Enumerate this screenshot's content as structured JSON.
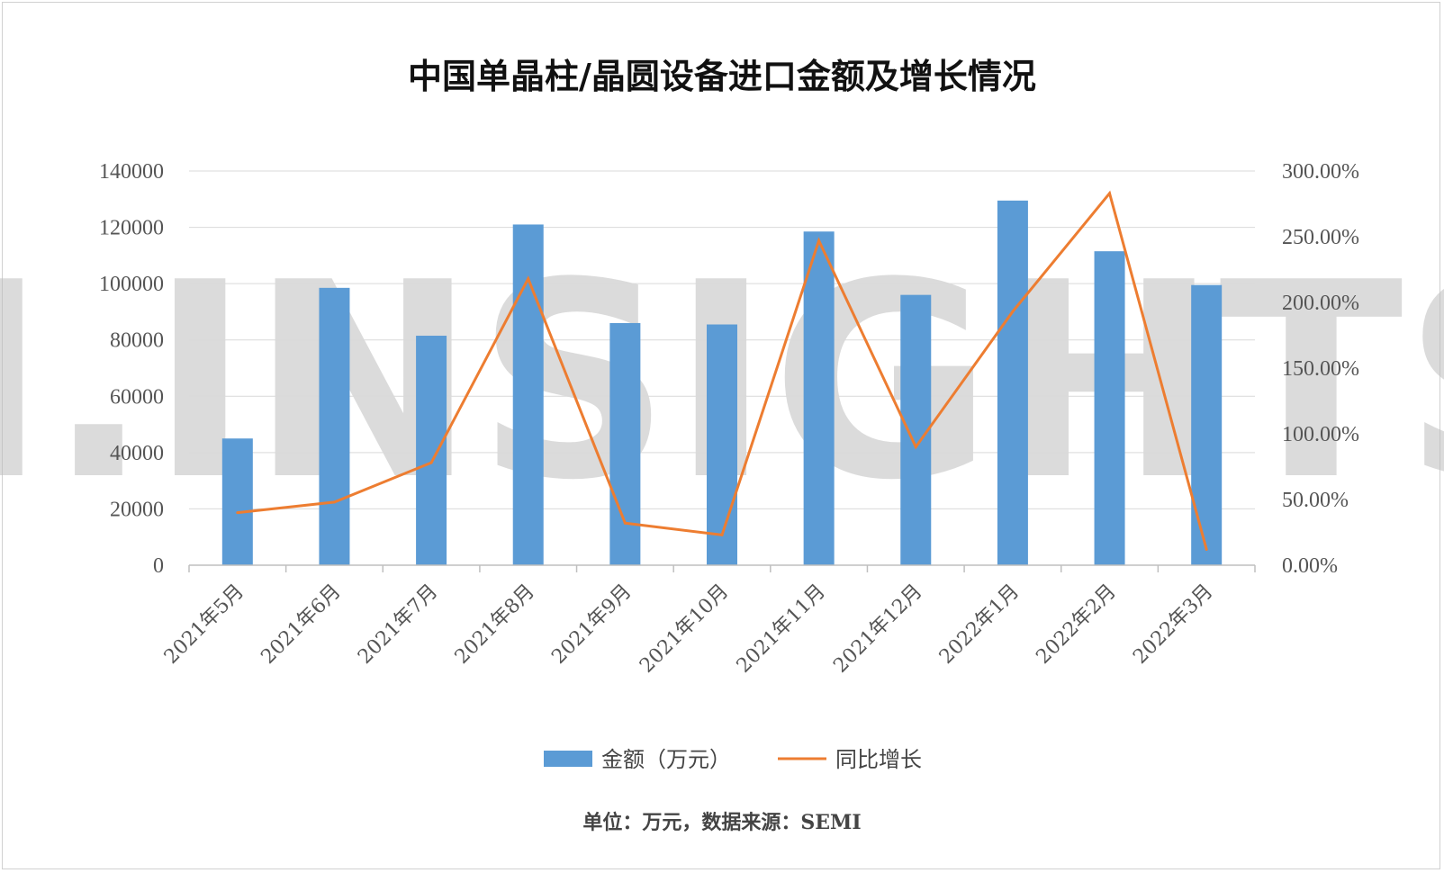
{
  "watermark": "JI.INSIGHTS",
  "source_note": "单位：万元，数据来源：SEMI",
  "chart_data": {
    "type": "bar+line",
    "title": "中国单晶柱/晶圆设备进口金额及增长情况",
    "categories": [
      "2021年5月",
      "2021年6月",
      "2021年7月",
      "2021年8月",
      "2021年9月",
      "2021年10月",
      "2021年11月",
      "2021年12月",
      "2022年1月",
      "2022年2月",
      "2022年3月"
    ],
    "series": [
      {
        "name": "金额（万元）",
        "type": "bar",
        "axis": "left",
        "color": "#5b9bd5",
        "values": [
          45000,
          98500,
          81500,
          121000,
          86000,
          85500,
          118500,
          96000,
          129500,
          111500,
          99500
        ]
      },
      {
        "name": "同比增长",
        "type": "line",
        "axis": "right",
        "color": "#ed7d31",
        "values": [
          0.4,
          0.48,
          0.78,
          2.18,
          0.32,
          0.23,
          2.47,
          0.9,
          1.93,
          2.83,
          0.12
        ]
      }
    ],
    "y_left": {
      "min": 0,
      "max": 140000,
      "ticks": [
        "0",
        "20000",
        "40000",
        "60000",
        "80000",
        "100000",
        "120000",
        "140000"
      ]
    },
    "y_right": {
      "min": 0,
      "max": 3.0,
      "ticks": [
        "0.00%",
        "50.00%",
        "100.00%",
        "150.00%",
        "200.00%",
        "250.00%",
        "300.00%"
      ]
    },
    "grid": true,
    "legend_position": "bottom"
  }
}
